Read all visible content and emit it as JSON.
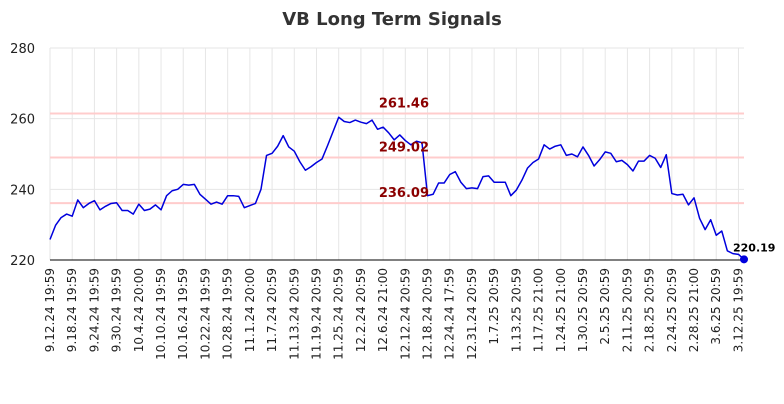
{
  "chart_data": {
    "type": "line",
    "title": "VB Long Term Signals",
    "ylim": [
      220,
      280
    ],
    "yticks": [
      220,
      240,
      260,
      280
    ],
    "grid": true,
    "xtick_labels": [
      "9.12.24 19:59",
      "9.18.24 19:59",
      "9.24.24 19:59",
      "9.30.24 19:59",
      "10.4.24 20:00",
      "10.10.24 19:59",
      "10.16.24 19:59",
      "10.22.24 19:59",
      "10.28.24 19:59",
      "11.1.24 20:00",
      "11.7.24 20:59",
      "11.13.24 20:59",
      "11.19.24 20:59",
      "11.25.24 20:59",
      "12.2.24 20:59",
      "12.6.24 21:00",
      "12.12.24 20:59",
      "12.18.24 20:59",
      "12.24.24 17:59",
      "12.31.24 20:59",
      "1.7.25 20:59",
      "1.13.25 20:59",
      "1.17.25 21:00",
      "1.24.25 21:00",
      "1.30.25 20:59",
      "2.5.25 20:59",
      "2.11.25 20:59",
      "2.18.25 20:59",
      "2.24.25 20:59",
      "2.28.25 21:00",
      "3.6.25 20:59",
      "3.12.25 19:59"
    ],
    "xtick_every": 4,
    "series": [
      {
        "color": "#0000dd",
        "values": [
          225.8,
          229.8,
          232.0,
          233.0,
          232.4,
          237.0,
          234.8,
          236.0,
          236.8,
          234.2,
          235.2,
          236.0,
          236.2,
          234.0,
          234.0,
          233.0,
          235.8,
          234.0,
          234.4,
          235.6,
          234.2,
          238.2,
          239.6,
          240.0,
          241.4,
          241.2,
          241.4,
          238.6,
          237.2,
          235.8,
          236.4,
          235.8,
          238.2,
          238.2,
          238.0,
          234.8,
          235.4,
          236.0,
          240.0,
          249.6,
          250.2,
          252.2,
          255.2,
          252.0,
          250.8,
          247.8,
          245.4,
          246.4,
          247.6,
          248.6,
          252.4,
          256.4,
          260.4,
          259.2,
          258.9,
          259.6,
          259.0,
          258.6,
          259.6,
          257.0,
          257.6,
          256.0,
          254.0,
          255.4,
          253.8,
          252.6,
          253.6,
          253.2,
          238.2,
          238.6,
          241.8,
          241.8,
          244.2,
          245.0,
          242.0,
          240.2,
          240.4,
          240.2,
          243.6,
          243.8,
          242.0,
          242.0,
          242.0,
          238.2,
          239.8,
          242.6,
          246.0,
          247.6,
          248.6,
          252.6,
          251.4,
          252.2,
          252.6,
          249.6,
          250.0,
          249.2,
          252.0,
          249.6,
          246.6,
          248.4,
          250.6,
          250.2,
          247.8,
          248.2,
          247.0,
          245.2,
          248.0,
          248.0,
          249.6,
          248.8,
          246.2,
          249.8,
          238.8,
          238.4,
          238.6,
          235.6,
          237.6,
          231.8,
          228.6,
          231.4,
          227.0,
          228.2,
          222.6,
          221.8,
          221.6,
          220.19
        ]
      }
    ],
    "levels": [
      {
        "value": 261.46,
        "label": "261.46"
      },
      {
        "value": 249.02,
        "label": "249.02"
      },
      {
        "value": 236.09,
        "label": "236.09"
      }
    ],
    "last_value": 220.19,
    "last_label": "220.19",
    "colors": {
      "level_line": "#ffcccc",
      "level_text": "#8b0000",
      "grid": "#e6e6e6",
      "axis": "#000000",
      "title": "#333333",
      "text": "#222222"
    }
  }
}
